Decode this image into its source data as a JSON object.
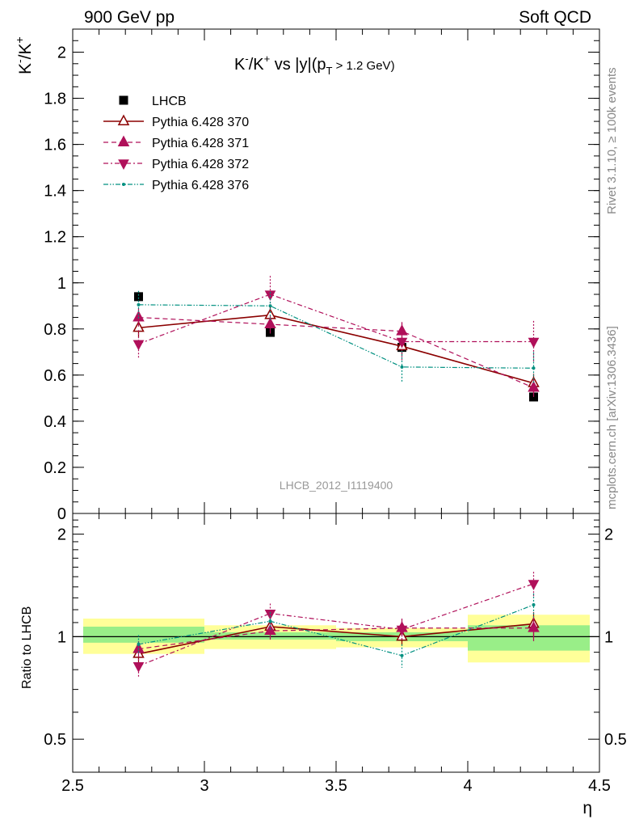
{
  "header": {
    "left": "900 GeV pp",
    "right": "Soft QCD"
  },
  "side_labels": {
    "version": "Rivet 3.1.10, ≥ 100k events",
    "source": "mcplots.cern.ch [arXiv:1306.3436]"
  },
  "watermark": "LHCB_2012_I1119400",
  "chart_data": [
    {
      "type": "scatter",
      "panel": "main",
      "title_parts": [
        "K",
        "-",
        "/K",
        "+",
        " vs |y|(p",
        "T",
        " > 1.2 GeV)"
      ],
      "ylabel_parts": [
        "K",
        "-",
        "/K",
        "+"
      ],
      "xlim": [
        2.5,
        4.5
      ],
      "ylim": [
        0,
        2.1
      ],
      "yticks": [
        0,
        0.2,
        0.4,
        0.6,
        0.8,
        1,
        1.2,
        1.4,
        1.6,
        1.8,
        2
      ],
      "ytick_labels": [
        "0",
        "0.2",
        "0.4",
        "0.6",
        "0.8",
        "1",
        "1.2",
        "1.4",
        "1.6",
        "1.8",
        "2"
      ],
      "legend_position": "top-left",
      "bins": [
        [
          2.5,
          3.0
        ],
        [
          3.0,
          3.5
        ],
        [
          3.5,
          4.0
        ],
        [
          4.0,
          4.5
        ]
      ],
      "x": [
        2.75,
        3.25,
        3.75,
        4.25
      ],
      "series": [
        {
          "name": "LHCB",
          "color": "#000000",
          "marker": "square",
          "line": "none",
          "values": [
            0.94,
            0.785,
            0.72,
            0.505
          ],
          "errors": [
            0.0,
            0.0,
            0.0,
            0.0
          ]
        },
        {
          "name": "Pythia 6.428 370",
          "color": "#8b0000",
          "marker": "triangle-up-open",
          "line": "solid",
          "values": [
            0.805,
            0.86,
            0.725,
            0.565
          ],
          "errors": [
            0.04,
            0.04,
            0.04,
            0.04
          ]
        },
        {
          "name": "Pythia 6.428 371",
          "color": "#b0105a",
          "marker": "triangle-up",
          "line": "dashed",
          "values": [
            0.85,
            0.82,
            0.79,
            0.545
          ],
          "errors": [
            0.04,
            0.04,
            0.04,
            0.04
          ]
        },
        {
          "name": "Pythia 6.428 372",
          "color": "#b0105a",
          "marker": "triangle-down",
          "line": "dashdot",
          "values": [
            0.735,
            0.95,
            0.745,
            0.745
          ],
          "errors": [
            0.06,
            0.08,
            0.08,
            0.09
          ]
        },
        {
          "name": "Pythia 6.428 376",
          "color": "#009080",
          "marker": "dot",
          "line": "dashdotdot",
          "values": [
            0.905,
            0.9,
            0.635,
            0.63
          ],
          "errors": [
            0.06,
            0.06,
            0.07,
            0.07
          ]
        }
      ]
    },
    {
      "type": "scatter",
      "panel": "ratio",
      "ylabel": "Ratio to LHCB",
      "xlabel": "η",
      "scale": "log",
      "xlim": [
        2.5,
        4.5
      ],
      "ylim": [
        0.4,
        2.3
      ],
      "yticks": [
        0.5,
        1,
        2
      ],
      "ytick_labels": [
        "0.5",
        "1",
        "2"
      ],
      "xticks": [
        2.5,
        3,
        3.5,
        4,
        4.5
      ],
      "xtick_labels": [
        "2.5",
        "3",
        "3.5",
        "4",
        "4.5"
      ],
      "reference_line": 1,
      "bands": [
        {
          "range": [
            2.5,
            3.0
          ],
          "inner": [
            0.96,
            1.07
          ],
          "outer": [
            0.89,
            1.13
          ]
        },
        {
          "range": [
            3.0,
            3.5
          ],
          "inner": [
            0.98,
            1.03
          ],
          "outer": [
            0.92,
            1.08
          ]
        },
        {
          "range": [
            3.5,
            4.0
          ],
          "inner": [
            0.97,
            1.03
          ],
          "outer": [
            0.93,
            1.06
          ]
        },
        {
          "range": [
            4.0,
            4.5
          ],
          "inner": [
            0.91,
            1.08
          ],
          "outer": [
            0.84,
            1.16
          ]
        }
      ],
      "x": [
        2.75,
        3.25,
        3.75,
        4.25
      ],
      "series": [
        {
          "name": "Pythia 6.428 370",
          "values": [
            0.89,
            1.07,
            1.0,
            1.09
          ],
          "errors": [
            0.05,
            0.06,
            0.06,
            0.09
          ]
        },
        {
          "name": "Pythia 6.428 371",
          "values": [
            0.92,
            1.04,
            1.06,
            1.06
          ],
          "errors": [
            0.05,
            0.06,
            0.06,
            0.09
          ]
        },
        {
          "name": "Pythia 6.428 372",
          "values": [
            0.82,
            1.17,
            1.05,
            1.43
          ],
          "errors": [
            0.06,
            0.08,
            0.08,
            0.12
          ]
        },
        {
          "name": "Pythia 6.428 376",
          "values": [
            0.95,
            1.11,
            0.88,
            1.24
          ],
          "errors": [
            0.06,
            0.07,
            0.07,
            0.1
          ]
        }
      ]
    }
  ]
}
